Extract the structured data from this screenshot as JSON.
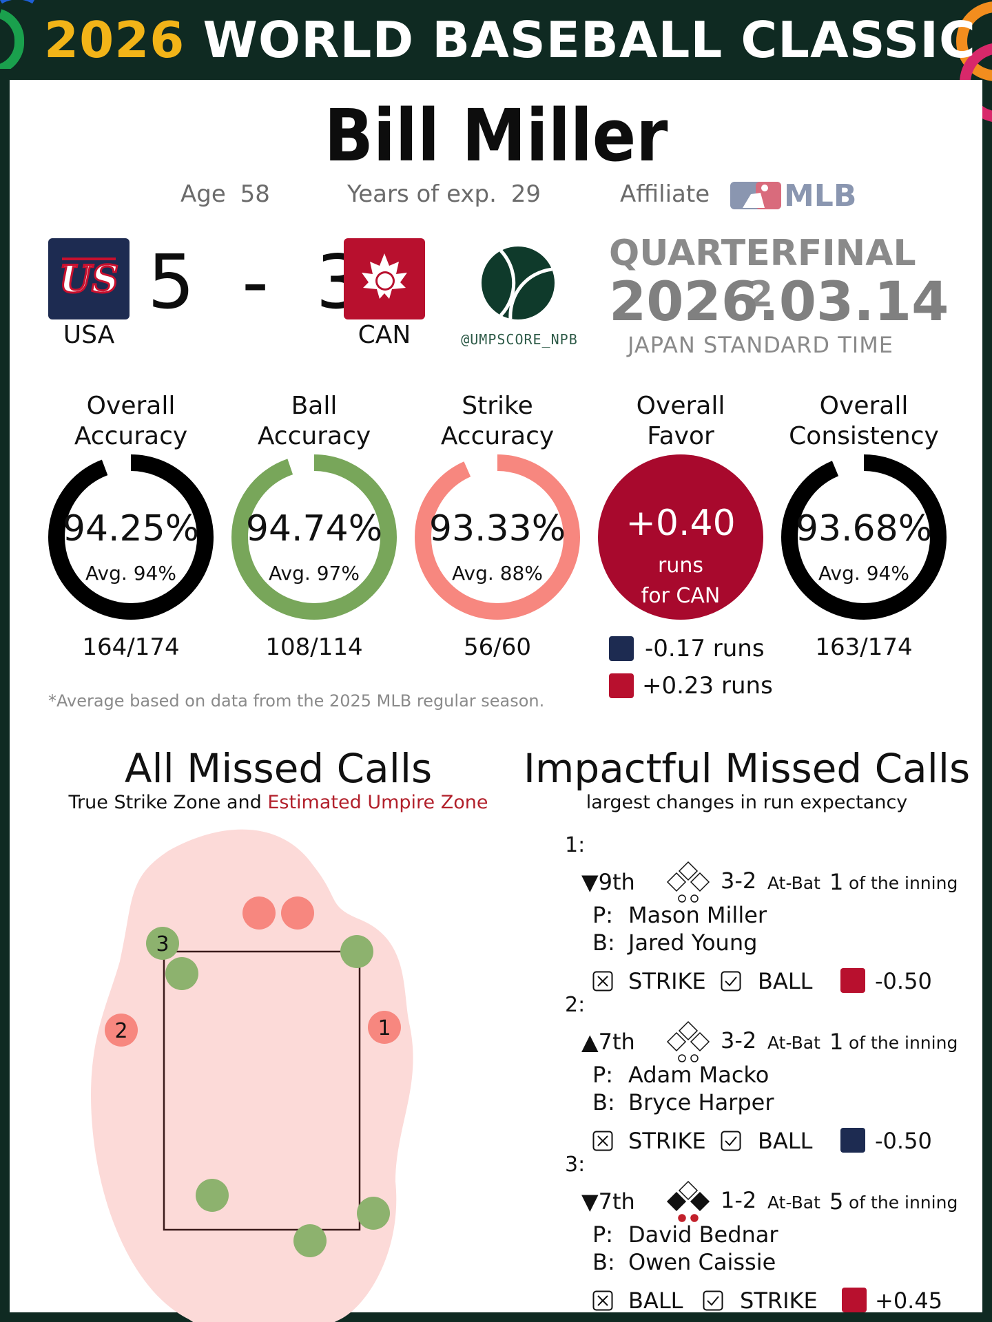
{
  "header": {
    "year": "2026",
    "title": "WORLD BASEBALL CLASSIC"
  },
  "umpire": {
    "name": "Bill Miller",
    "age_label": "Age",
    "age": "58",
    "exp_label": "Years of exp.",
    "exp": "29",
    "affiliate_label": "Affiliate",
    "affiliate": "MLB"
  },
  "game": {
    "home_team": "USA",
    "home_score": "5",
    "away_team": "CAN",
    "away_score": "3",
    "score_sep": "-",
    "handle": "@UMPSCORE_NPB",
    "round": "QUARTERFINAL 2",
    "date": "2026.03.14",
    "timezone": "JAPAN STANDARD TIME"
  },
  "stats": [
    {
      "title_l1": "Overall",
      "title_l2": "Accuracy",
      "value": "94.25%",
      "avg": "Avg. 94%",
      "frac": "164/174",
      "fill": 0.9425,
      "color": "#000000"
    },
    {
      "title_l1": "Ball",
      "title_l2": "Accuracy",
      "value": "94.74%",
      "avg": "Avg. 97%",
      "frac": "108/114",
      "fill": 0.9474,
      "color": "#78a65a"
    },
    {
      "title_l1": "Strike",
      "title_l2": "Accuracy",
      "value": "93.33%",
      "avg": "Avg. 88%",
      "frac": "56/60",
      "fill": 0.9333,
      "color": "#f7877f"
    },
    {
      "title_l1": "Overall",
      "title_l2": "Consistency",
      "value": "93.68%",
      "avg": "Avg. 94%",
      "frac": "163/174",
      "fill": 0.9368,
      "color": "#000000"
    }
  ],
  "favor": {
    "title_l1": "Overall",
    "title_l2": "Favor",
    "value": "+0.40",
    "unit": "runs",
    "team": "for CAN",
    "color": "#a8092d",
    "usa_runs": "-0.17 runs",
    "can_runs": "+0.23 runs"
  },
  "note": "*Average based on data from the 2025 MLB regular season.",
  "missed": {
    "title": "All Missed Calls",
    "sub_a": "True Strike Zone and ",
    "sub_b": "Estimated Umpire Zone",
    "labels": [
      "1",
      "2",
      "3"
    ]
  },
  "impact": {
    "title": "Impactful Missed Calls",
    "sub": "largest changes in run expectancy",
    "calls": [
      {
        "num": "1:",
        "inning": "▼9th",
        "count": "3-2",
        "atbat_label": "At-Bat",
        "atbat": "1",
        "of_label": "of the inning",
        "p_label": "P:",
        "pitcher": "Mason Miller",
        "b_label": "B:",
        "batter": "Jared Young",
        "wrong": "STRIKE",
        "right": "BALL",
        "delta": "-0.50",
        "team": "CAN"
      },
      {
        "num": "2:",
        "inning": "▲7th",
        "count": "3-2",
        "atbat_label": "At-Bat",
        "atbat": "1",
        "of_label": "of the inning",
        "p_label": "P:",
        "pitcher": "Adam Macko",
        "b_label": "B:",
        "batter": "Bryce Harper",
        "wrong": "STRIKE",
        "right": "BALL",
        "delta": "-0.50",
        "team": "USA"
      },
      {
        "num": "3:",
        "inning": "▼7th",
        "count": "1-2",
        "atbat_label": "At-Bat",
        "atbat": "5",
        "of_label": "of the inning",
        "p_label": "P:",
        "pitcher": "David Bednar",
        "b_label": "B:",
        "batter": "Owen Caissie",
        "wrong": "BALL",
        "right": "STRIKE",
        "delta": "+0.45",
        "team": "CAN"
      }
    ]
  }
}
